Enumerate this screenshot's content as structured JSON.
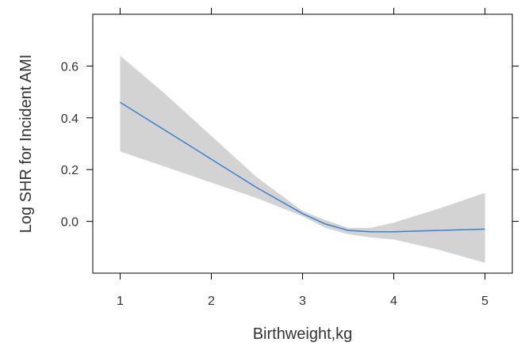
{
  "chart_data": {
    "type": "line",
    "xlabel": "Birthweight,kg",
    "ylabel": "Log SHR for Incident AMI",
    "xlim": [
      0.7,
      5.3
    ],
    "ylim": [
      -0.2,
      0.8
    ],
    "x_ticks": [
      1,
      2,
      3,
      4,
      5
    ],
    "x_tick_labels": [
      "1",
      "2",
      "3",
      "4",
      "5"
    ],
    "y_ticks": [
      0.0,
      0.2,
      0.4,
      0.6
    ],
    "y_tick_labels": [
      "0.0",
      "0.2",
      "0.4",
      "0.6"
    ],
    "grid": false,
    "colors": {
      "line": "#3b7fd4",
      "band": "#d3d3d3",
      "frame": "#000000"
    },
    "series": [
      {
        "x": [
          1.0,
          1.5,
          2.0,
          2.5,
          3.0,
          3.25,
          3.5,
          3.75,
          4.0,
          4.5,
          5.0
        ],
        "y": [
          0.46,
          0.35,
          0.24,
          0.13,
          0.03,
          -0.01,
          -0.035,
          -0.04,
          -0.04,
          -0.035,
          -0.03
        ],
        "lower": [
          0.27,
          0.21,
          0.15,
          0.09,
          0.02,
          -0.025,
          -0.05,
          -0.062,
          -0.07,
          -0.11,
          -0.16
        ],
        "upper": [
          0.64,
          0.49,
          0.33,
          0.17,
          0.04,
          0.005,
          -0.025,
          -0.025,
          -0.005,
          0.05,
          0.11
        ]
      }
    ]
  }
}
